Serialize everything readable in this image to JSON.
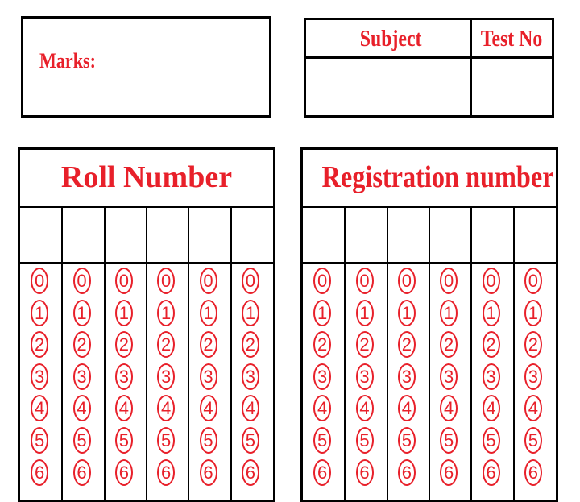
{
  "marks": {
    "label": "Marks:"
  },
  "subject_box": {
    "subject_label": "Subject",
    "test_no_label": "Test No"
  },
  "roll_number": {
    "title": "Roll Number",
    "columns": 6
  },
  "registration_number": {
    "title": "Registration number",
    "columns": 6
  },
  "bubble_digits": [
    "0",
    "1",
    "2",
    "3",
    "4",
    "5",
    "6"
  ],
  "colors": {
    "accent": "#e8202a",
    "border": "#000000"
  }
}
